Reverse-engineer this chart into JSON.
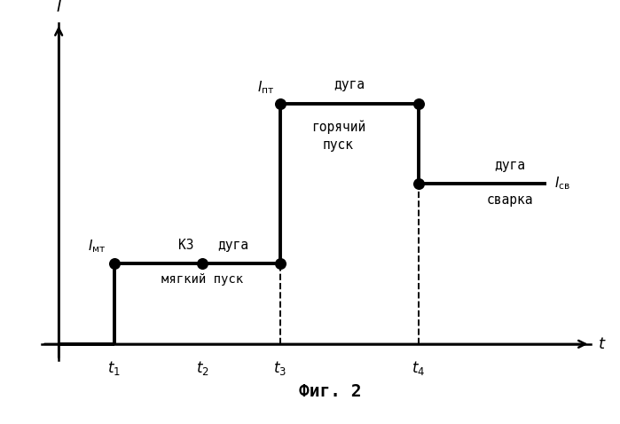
{
  "title": "Фиг. 2",
  "xlabel": "t",
  "ylabel": "I",
  "background_color": "#ffffff",
  "line_color": "#000000",
  "line_width": 2.8,
  "dot_size": 70,
  "t1": 1.0,
  "t2": 2.6,
  "t3": 4.0,
  "t4": 6.5,
  "t_end": 8.8,
  "I_mt": 1.5,
  "I_ht": 4.5,
  "I_sv": 3.0,
  "xlim": [
    -0.5,
    9.8
  ],
  "ylim": [
    -1.1,
    6.2
  ]
}
